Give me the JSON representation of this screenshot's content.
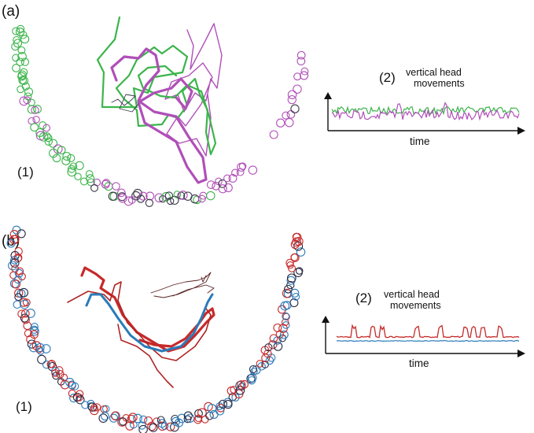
{
  "panels": [
    {
      "label": "(a)",
      "subplot1_label": "(1)",
      "subplot2_label": "(2)",
      "trace_title_line1": "vertical head",
      "trace_title_line2": "movements",
      "x_axis_label": "time",
      "colors": {
        "track_a": "#3cb44b",
        "track_b": "#b04fb8",
        "dark": "#3a3a4a"
      }
    },
    {
      "label": "(b)",
      "subplot1_label": "(1)",
      "subplot2_label": "(2)",
      "trace_title_line1": "vertical head",
      "trace_title_line2": "movements",
      "x_axis_label": "time",
      "colors": {
        "track_a": "#c62a2a",
        "track_b": "#2b7bb9",
        "dark": "#2a2a44"
      }
    }
  ]
}
